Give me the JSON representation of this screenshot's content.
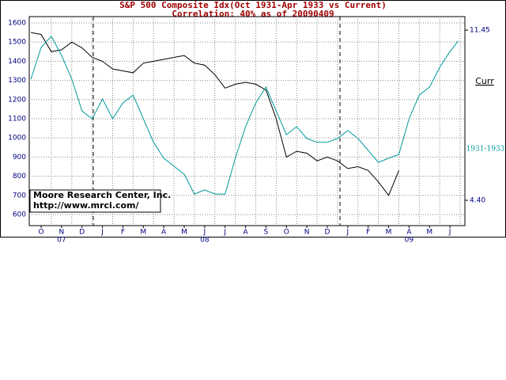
{
  "chart_data": {
    "type": "line",
    "title": "S&P 500 Composite Idx(Oct 1931-Apr 1933 vs Current)",
    "subtitle": "Correlation: 40% as of 20090409",
    "annotation": [
      "Moore Research Center, Inc.",
      "http://www.mrci.com/"
    ],
    "xlim": [
      -0.58,
      20.73
    ],
    "xticks": [
      {
        "value": 0,
        "label": "O"
      },
      {
        "value": 1,
        "label": "N"
      },
      {
        "value": 2,
        "label": "D"
      },
      {
        "value": 3,
        "label": "J"
      },
      {
        "value": 4,
        "label": "F"
      },
      {
        "value": 5,
        "label": "M"
      },
      {
        "value": 6,
        "label": "A"
      },
      {
        "value": 7,
        "label": "M"
      },
      {
        "value": 8,
        "label": "J"
      },
      {
        "value": 9,
        "label": "J"
      },
      {
        "value": 10,
        "label": "A"
      },
      {
        "value": 11,
        "label": "S"
      },
      {
        "value": 12,
        "label": "O"
      },
      {
        "value": 13,
        "label": "N"
      },
      {
        "value": 14,
        "label": "D"
      },
      {
        "value": 15,
        "label": "J"
      },
      {
        "value": 16,
        "label": "F"
      },
      {
        "value": 17,
        "label": "M"
      },
      {
        "value": 18,
        "label": "A"
      },
      {
        "value": 19,
        "label": "M"
      },
      {
        "value": 20,
        "label": "J"
      }
    ],
    "x_years": [
      null,
      "07",
      null,
      null,
      null,
      null,
      null,
      null,
      "08",
      null,
      null,
      null,
      null,
      null,
      null,
      null,
      null,
      null,
      "09",
      null,
      null
    ],
    "ylim": [
      542,
      1633
    ],
    "yticks": [
      600,
      700,
      800,
      900,
      1000,
      1100,
      1200,
      1300,
      1400,
      1500,
      1600
    ],
    "y2lim": [
      3.35,
      12.01
    ],
    "y2ticks": [
      {
        "value": 4.4,
        "label": "4.40"
      },
      11.45
    ],
    "grid": true,
    "series": [
      {
        "name": "Curr",
        "color": "#000000",
        "x": [
          -0.5,
          0,
          0.5,
          1,
          1.5,
          2,
          2.5,
          3,
          3.5,
          4,
          4.5,
          5,
          5.5,
          6,
          6.5,
          7,
          7.5,
          8,
          8.5,
          9,
          9.5,
          10,
          10.5,
          11,
          11.5,
          12,
          12.5,
          13,
          13.5,
          14,
          14.5,
          15,
          15.5,
          16,
          16.5,
          17,
          17.5
        ],
        "values": [
          1550,
          1540,
          1450,
          1460,
          1500,
          1470,
          1420,
          1400,
          1360,
          1350,
          1340,
          1390,
          1400,
          1410,
          1420,
          1430,
          1390,
          1380,
          1330,
          1260,
          1280,
          1290,
          1280,
          1250,
          1100,
          900,
          930,
          920,
          880,
          900,
          880,
          840,
          850,
          830,
          770,
          700,
          830
        ]
      },
      {
        "name": "1931-1933",
        "color": "#009999",
        "axis": "y2",
        "x": [
          -0.5,
          0,
          0.5,
          1,
          1.5,
          2,
          2.5,
          3,
          3.5,
          4,
          4.5,
          5,
          5.5,
          6,
          6.5,
          7,
          7.5,
          8,
          8.5,
          9,
          9.5,
          10,
          10.5,
          11,
          11.5,
          12,
          12.5,
          13,
          13.5,
          14,
          14.5,
          15,
          15.5,
          16,
          16.5,
          17,
          17.5,
          18,
          18.5,
          19,
          19.5,
          20,
          20.4
        ],
        "values": [
          9.42,
          10.73,
          11.2,
          10.4,
          9.42,
          8.1,
          7.78,
          8.6,
          7.78,
          8.43,
          8.76,
          7.78,
          6.8,
          6.14,
          5.81,
          5.48,
          4.66,
          4.83,
          4.66,
          4.66,
          6.14,
          7.45,
          8.43,
          9.09,
          8.1,
          7.12,
          7.45,
          6.96,
          6.8,
          6.8,
          6.96,
          7.29,
          6.96,
          6.47,
          5.97,
          6.14,
          6.3,
          7.78,
          8.76,
          9.09,
          9.91,
          10.56,
          11.0
        ]
      }
    ]
  }
}
